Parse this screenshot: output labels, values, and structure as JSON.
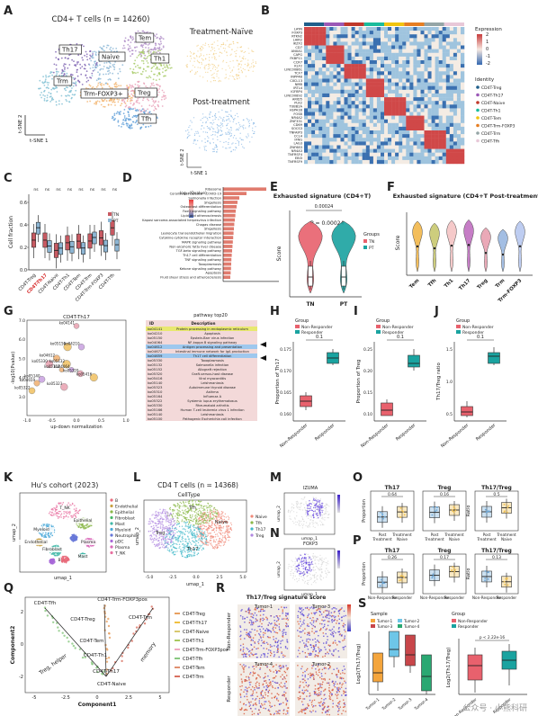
{
  "labels": [
    "A",
    "B",
    "C",
    "D",
    "E",
    "F",
    "G",
    "H",
    "I",
    "J",
    "K",
    "L",
    "M",
    "N",
    "O",
    "P",
    "Q",
    "R",
    "S"
  ],
  "panelA": {
    "title": "CD4+ T cells (n = 14260)",
    "clusters": [
      {
        "name": "Th17",
        "color": "#7b5fb0",
        "cx": 82,
        "cy": 72,
        "rx": 26,
        "ry": 24
      },
      {
        "name": "Naive",
        "color": "#8ab6d6",
        "cx": 118,
        "cy": 72,
        "rx": 20,
        "ry": 22
      },
      {
        "name": "Tem",
        "color": "#b08fc8",
        "cx": 160,
        "cy": 50,
        "rx": 24,
        "ry": 16
      },
      {
        "name": "Th1",
        "color": "#a9cc6a",
        "cx": 168,
        "cy": 72,
        "rx": 24,
        "ry": 18
      },
      {
        "name": "Trm",
        "color": "#7fbfd3",
        "cx": 64,
        "cy": 98,
        "rx": 22,
        "ry": 20
      },
      {
        "name": "Trm-FOXP3+",
        "color": "#f3b36b",
        "cx": 120,
        "cy": 105,
        "rx": 32,
        "ry": 14
      },
      {
        "name": "Treg",
        "color": "#e8a0b8",
        "cx": 160,
        "cy": 108,
        "rx": 26,
        "ry": 18
      },
      {
        "name": "Tfh",
        "color": "#5f9fd8",
        "cx": 150,
        "cy": 132,
        "rx": 26,
        "ry": 12
      }
    ],
    "tags": [
      {
        "name": "Th17",
        "x": 66,
        "y": 57
      },
      {
        "name": "Naive",
        "x": 110,
        "y": 65
      },
      {
        "name": "Tem",
        "x": 151,
        "y": 44
      },
      {
        "name": "Th1",
        "x": 168,
        "y": 67
      },
      {
        "name": "Trm",
        "x": 60,
        "y": 92
      },
      {
        "name": "Trm-FOXP3+",
        "x": 90,
        "y": 106
      },
      {
        "name": "Treg",
        "x": 150,
        "y": 105
      },
      {
        "name": "Tfh",
        "x": 154,
        "y": 134
      }
    ],
    "axes": [
      "t-SNE 1",
      "t-SNE 2"
    ],
    "insets": [
      {
        "title": "Treatment-Naïve",
        "color": "#f0c46a"
      },
      {
        "title": "Post-treatment",
        "color": "#6ea8e0"
      }
    ]
  },
  "panelB": {
    "genes": [
      "LAYN",
      "FOXP3",
      "RTKN2",
      "LAIR2",
      "IKZF2",
      "CD7",
      "ANXA1",
      "CAPG",
      "FKBP11",
      "CCR7",
      "KLF2",
      "LINC00861",
      "TCF7",
      "INPP4B",
      "CXCL13",
      "NMB",
      "IRTL4",
      "IGFBP4",
      "LINC00892",
      "ARID5",
      "PLK2",
      "TUBB2A",
      "HSPA1B",
      "FOSB",
      "NR4A2",
      "ZNF331",
      "CD69",
      "SOCS3",
      "TNFAIP3",
      "CCL4",
      "IFNG",
      "LAG3",
      "ZNF683",
      "NR4A3",
      "TNFRSF4",
      "EBI3",
      "TNFRSF9"
    ],
    "identity_title": "Identity",
    "identities": [
      "CD4T-Treg",
      "CD4T-Th17",
      "CD4T-Naive",
      "CD4T-Th1",
      "CD4T-Tem",
      "CD4T-Trm-FOXP3",
      "CD4T-Trm",
      "CD4T-Tfh"
    ],
    "identity_colors": [
      "#1f5f8b",
      "#9b59b6",
      "#c0392b",
      "#1abc9c",
      "#f1c40f",
      "#e67e22",
      "#95a5a6",
      "#e8c8d8"
    ],
    "legend_title": "Expression",
    "scale": [
      "2",
      "1",
      "0",
      "-1",
      "-2"
    ]
  },
  "panelC": {
    "ylabel": "Cell fraction",
    "categories": [
      "CD4T-Treg",
      "CD4T-Th17",
      "CD4T-Naive",
      "CD4T-Th1",
      "CD4T-Tem",
      "CD4T-Trm",
      "CD4T-Trm-FOXP3",
      "CD4T-Tfh"
    ],
    "highlight": [
      "CD4T-Th17"
    ],
    "ns": [
      "ns",
      "ns",
      "ns",
      "ns",
      "ns",
      "ns",
      "ns",
      "ns"
    ],
    "groups": [
      "TN",
      "PT"
    ],
    "group_colors": [
      "#c85a62",
      "#8db6d4"
    ],
    "ticks": [
      "0.0",
      "0.2",
      "0.4",
      "0.6"
    ]
  },
  "chart_data": [
    {
      "panel": "D",
      "type": "bar",
      "categories": [
        "Ribosome",
        "Coronavirus disease - COVID-19",
        "Salmonella infection",
        "Shigellosis",
        "Osteoclast differentiation",
        "FoxO signaling pathway",
        "Lipid and atherosclerosis",
        "Kaposi sarcoma-associated herpesvirus infection",
        "Chagas disease",
        "Shigellosis",
        "Leukocyte transendothelial migration",
        "Cytokine-cytokine receptor interaction",
        "MAPK signaling pathway",
        "Non-alcoholic fatty liver disease",
        "TGF-beta signaling pathway",
        "Th17 cell differentiation",
        "TNF signaling pathway",
        "Toxoplasmosis",
        "Ketone signaling pathway",
        "Apoptosis",
        "Fluid shear stress and atherosclerosis"
      ],
      "values": [
        24,
        13,
        9,
        8,
        7.5,
        7,
        6.8,
        6.5,
        6.2,
        6.0,
        5.8,
        5.6,
        5.4,
        5.2,
        5.0,
        4.8,
        4.6,
        4.5,
        4.4,
        4.2,
        4.0
      ],
      "color": "#e07b6e",
      "legend_title": "-log₁₀(Qvalue)"
    },
    {
      "panel": "E",
      "type": "violin",
      "title": "Exhausted signature (CD4+T)",
      "categories": [
        "TN",
        "PT"
      ],
      "colors": [
        "#e8616d",
        "#1aa3a0"
      ],
      "ylabel": "Score",
      "annotations": [
        "P = 0.00024",
        "0.00024"
      ],
      "legend_title": "Groups",
      "legend": [
        "TN",
        "PT"
      ]
    },
    {
      "panel": "F",
      "type": "violin",
      "title": "Exhausted signature (CD4+T Post-treatment)",
      "ylabel": "Score",
      "categories": [
        "Tem",
        "Tfh",
        "Th1",
        "Th17",
        "Treg",
        "Trm",
        "Trm-FOXP3"
      ],
      "colors": [
        "#f2b84b",
        "#c8c870",
        "#f4c4c4",
        "#c070c0",
        "#e8a0b0",
        "#9ab8e0",
        "#b8c8f0"
      ]
    },
    {
      "panel": "G",
      "type": "scatter",
      "title": "CD4T-Th17",
      "xlabel": "up-down normalization",
      "ylabel": "-log10(Pvalue)",
      "xlim": [
        -1.0,
        1.0
      ],
      "ylim": [
        2.0,
        7.0
      ],
      "xticks": [
        "-1.0",
        "-0.5",
        "0.0",
        "0.5",
        "1.0"
      ],
      "yticks": [
        "3.0",
        "4.0",
        "5.0",
        "6.0",
        "7.0"
      ],
      "points": [
        {
          "id": "ko04141",
          "x": 0.0,
          "y": 6.7
        },
        {
          "id": "ko05150",
          "x": -0.18,
          "y": 5.6
        },
        {
          "id": "ko04210",
          "x": 0.1,
          "y": 5.6
        },
        {
          "id": "ko04612",
          "x": -0.4,
          "y": 5.0
        },
        {
          "id": "ko05330",
          "x": -0.55,
          "y": 4.7
        },
        {
          "id": "ko05132",
          "x": -0.2,
          "y": 4.7
        },
        {
          "id": "ko04064",
          "x": -0.1,
          "y": 4.4
        },
        {
          "id": "ko05152",
          "x": -0.3,
          "y": 4.4
        },
        {
          "id": "ko05320",
          "x": 0.08,
          "y": 4.2
        },
        {
          "id": "ko05416",
          "x": 0.35,
          "y": 4.0
        },
        {
          "id": "ko05140",
          "x": -0.7,
          "y": 3.9
        },
        {
          "id": "ko04659",
          "x": -0.8,
          "y": 3.7
        },
        {
          "id": "ko05323",
          "x": -0.25,
          "y": 3.5
        },
        {
          "id": "ko05322",
          "x": -0.9,
          "y": 3.3
        }
      ]
    },
    {
      "panel": "H",
      "type": "box",
      "categories": [
        "Non-Responder",
        "Responder"
      ],
      "colors": [
        "#e8616d",
        "#1aa3a0"
      ],
      "ylabel": "Proportion of Th17",
      "yticks": [
        "0.160",
        "0.165",
        "0.170",
        "0.175"
      ],
      "pvalue": "0.1",
      "legend_title": "Group",
      "legend": [
        "Non-Responder",
        "Responder"
      ]
    },
    {
      "panel": "I",
      "type": "box",
      "categories": [
        "Non-Responder",
        "Responder"
      ],
      "colors": [
        "#e8616d",
        "#1aa3a0"
      ],
      "ylabel": "Proportion of Treg",
      "yticks": [
        "0.10",
        "0.15",
        "0.20",
        "0.25"
      ],
      "pvalue": "0.1",
      "legend_title": "Group",
      "legend": [
        "Non-Responder",
        "Responder"
      ]
    },
    {
      "panel": "J",
      "type": "box",
      "categories": [
        "Non-Responder",
        "Responder"
      ],
      "colors": [
        "#e8616d",
        "#1aa3a0"
      ],
      "ylabel": "Th17/Treg ratio",
      "yticks": [
        "0.5",
        "1.0",
        "1.5"
      ],
      "pvalue": "0.1",
      "legend_title": "Group",
      "legend": [
        "Non-Responder",
        "Responder"
      ]
    },
    {
      "panel": "O",
      "type": "box",
      "facets": [
        "Th17",
        "Treg",
        "Th17/Treg"
      ],
      "categories": [
        "Post Treatment",
        "Treatment Naive"
      ],
      "colors": [
        "#6ea8d8",
        "#f0c050"
      ],
      "pvalues": [
        "0.64",
        "0.16",
        "0.5"
      ],
      "ylabels": [
        "Proportion",
        "Proportion",
        "Ratio"
      ]
    },
    {
      "panel": "P",
      "type": "box",
      "facets": [
        "Th17",
        "Treg",
        "Th17/Treg"
      ],
      "categories": [
        "Non-Responder",
        "Responder"
      ],
      "colors": [
        "#6ea8d8",
        "#f0c050"
      ],
      "pvalues": [
        "0.26",
        "0.17",
        "0.13"
      ],
      "ylabels": [
        "Proportion",
        "Proportion",
        "Ratio"
      ]
    },
    {
      "panel": "S",
      "type": "box",
      "left": {
        "ylabel": "Log2(Th17/Treg)",
        "legend_title": "Sample",
        "categories": [
          "Tumor-1",
          "Tumor-2",
          "Tumor-3",
          "Tumor-4"
        ],
        "colors": [
          "#f4a53c",
          "#6ec6e8",
          "#c8464a",
          "#2aa872"
        ]
      },
      "right": {
        "ylabel": "Log2(Th17/Treg)",
        "legend_title": "Group",
        "categories": [
          "Non-Responder",
          "Responder"
        ],
        "colors": [
          "#e8616d",
          "#1aa3a0"
        ],
        "pvalue": "p < 2.22e-16"
      }
    }
  ],
  "panelG": {
    "table_title": "pathway top20",
    "table_headers": [
      "ID",
      "Description"
    ],
    "rows": [
      {
        "id": "ko04141",
        "desc": "Protein processing in endoplasmic reticulum",
        "hl": "#e8e870"
      },
      {
        "id": "ko04210",
        "desc": "Apoptosis",
        "hl": ""
      },
      {
        "id": "ko05150",
        "desc": "Epstein-Barr virus infection",
        "hl": ""
      },
      {
        "id": "ko04064",
        "desc": "NF-kappa B signaling pathway",
        "hl": ""
      },
      {
        "id": "ko04612",
        "desc": "Antigen processing and presentation",
        "hl": "#9ec8ee"
      },
      {
        "id": "ko04672",
        "desc": "Intestinal immune network for IgA production",
        "hl": ""
      },
      {
        "id": "ko04659",
        "desc": "Th17 cell differentiation",
        "hl": "#9ec8ee"
      },
      {
        "id": "ko05330",
        "desc": "Toxoplasmosis",
        "hl": ""
      },
      {
        "id": "ko05132",
        "desc": "Salmonella infection",
        "hl": ""
      },
      {
        "id": "ko05152",
        "desc": "Allograft rejection",
        "hl": ""
      },
      {
        "id": "ko05320",
        "desc": "Graft-versus-host disease",
        "hl": ""
      },
      {
        "id": "ko05416",
        "desc": "Viral myocarditis",
        "hl": ""
      },
      {
        "id": "ko05140",
        "desc": "Leishmaniasis",
        "hl": ""
      },
      {
        "id": "ko05323",
        "desc": "Autoimmune thyroid disease",
        "hl": ""
      },
      {
        "id": "ko05310",
        "desc": "Asthma",
        "hl": ""
      },
      {
        "id": "ko05164",
        "desc": "Influenza A",
        "hl": ""
      },
      {
        "id": "ko05322",
        "desc": "Systemic lupus erythematosus",
        "hl": ""
      },
      {
        "id": "ko05330",
        "desc": "Rheumatoid arthritis",
        "hl": ""
      },
      {
        "id": "ko05166",
        "desc": "Human T-cell leukemia virus 1 infection",
        "hl": ""
      },
      {
        "id": "ko05140",
        "desc": "Leishmaniasis",
        "hl": ""
      },
      {
        "id": "ko05100",
        "desc": "Pathogenic Escherichia coli infection",
        "hl": ""
      }
    ]
  },
  "panelK": {
    "title": "Hu's cohort (2023)",
    "axes": [
      "umap_1",
      "umap_2"
    ],
    "legend": [
      "B",
      "Endothelial",
      "Epithelial",
      "Fibroblast",
      "Mast",
      "Myeloid",
      "Neutrophil",
      "pDC",
      "Plasma",
      "T_NK"
    ],
    "colors": [
      "#e86a7a",
      "#c8a040",
      "#8ab848",
      "#48b868",
      "#40b8a8",
      "#48a8d8",
      "#6878d8",
      "#a868d8",
      "#d868b8",
      "#e870a0"
    ],
    "labels_on_map": [
      "T_NK",
      "Myeloid",
      "Epithelial",
      "Fibroblast",
      "Endothelial",
      "Plasma",
      "B",
      "Mast"
    ]
  },
  "panelL": {
    "title": "CD4 T cells (n = 14368)",
    "legend_title": "CellType",
    "legend": [
      "Naive",
      "Tfh",
      "Th17",
      "Treg"
    ],
    "colors": [
      "#f08a7a",
      "#8ab848",
      "#40b8c8",
      "#b088e0"
    ],
    "axes": [
      "umap_1",
      "umap_2"
    ],
    "xticks": [
      "-5.0",
      "-2.5",
      "0.0",
      "2.5",
      "5.0"
    ],
    "map_labels": [
      "Naive",
      "Tfh",
      "Th17",
      "Treg"
    ]
  },
  "panelMN": {
    "genes": [
      "IZUMA",
      "FOXP3"
    ],
    "axes": [
      "umap_1",
      "umap_2"
    ]
  },
  "panelQ": {
    "xlabel": "Component1",
    "ylabel": "Component2",
    "xticks": [
      "-5",
      "-2.5",
      "0",
      "2.5",
      "5"
    ],
    "yticks": [
      "-2",
      "0",
      "2"
    ],
    "nodes": [
      "CD4T-Tfh",
      "CD4T-Trm-FOXP3pos",
      "CD4T-Treg",
      "CD4T-Trm",
      "CD4T-Tem",
      "CD4T-Th1",
      "CD4T-Th17",
      "CD4T-Naive"
    ],
    "annotations": [
      "Treg, helper",
      "memory"
    ],
    "legend": [
      "CD4T-Treg",
      "CD4T-Th17",
      "CD4T-Naive",
      "CD4T-Th1",
      "CD4T-Trm-FOXP3pos",
      "CD4T-Tfh",
      "CD4T-Tem",
      "CD4T-Trm"
    ],
    "colors": [
      "#e8a060",
      "#f0c040",
      "#d8c870",
      "#a8c860",
      "#f0a8c0",
      "#88c880",
      "#e09070",
      "#d87060"
    ]
  },
  "panelR": {
    "title": "Th17/Treg signature score",
    "groups": [
      "Non-Responder",
      "Responder"
    ],
    "samples": [
      "Tumor-1",
      "Tumor-3",
      "Tumor-4",
      "Tumor-2"
    ]
  },
  "watermark": "公众号 · 小熊科研"
}
